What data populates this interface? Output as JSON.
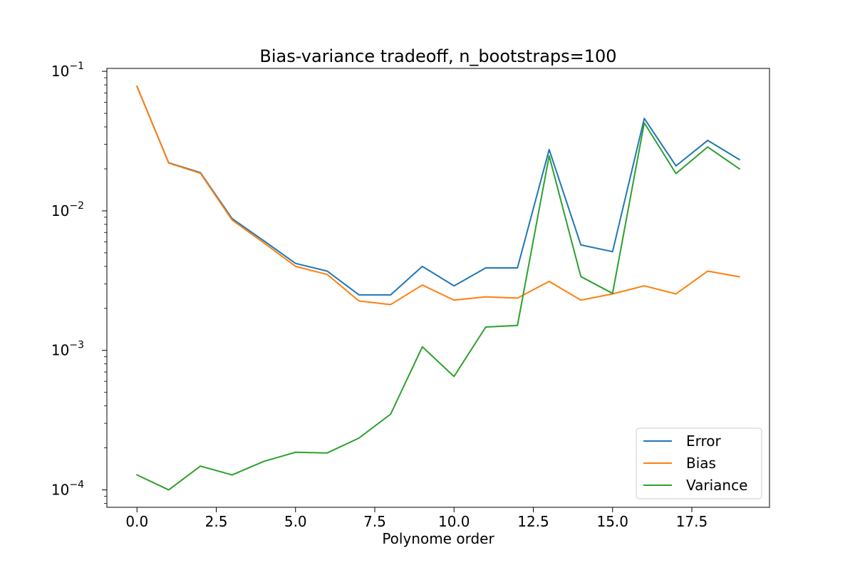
{
  "chart_data": {
    "type": "line",
    "title": "Bias-variance tradeoff, n_bootstraps=100",
    "xlabel": "Polynome order",
    "ylabel": "",
    "xscale": "linear",
    "yscale": "log",
    "xlim": [
      -0.95,
      19.95
    ],
    "ylim": [
      7.5e-05,
      0.105
    ],
    "x_ticks": [
      0.0,
      2.5,
      5.0,
      7.5,
      10.0,
      12.5,
      15.0,
      17.5
    ],
    "x_tick_labels": [
      "0.0",
      "2.5",
      "5.0",
      "7.5",
      "10.0",
      "12.5",
      "15.0",
      "17.5"
    ],
    "y_ticks": [
      0.0001,
      0.001,
      0.01,
      0.1
    ],
    "y_tick_labels": [
      {
        "base": "10",
        "exp": "−4"
      },
      {
        "base": "10",
        "exp": "−3"
      },
      {
        "base": "10",
        "exp": "−2"
      },
      {
        "base": "10",
        "exp": "−1"
      }
    ],
    "grid": false,
    "legend_position": "lower-right",
    "x": [
      0,
      1,
      2,
      3,
      4,
      5,
      6,
      7,
      8,
      9,
      10,
      11,
      12,
      13,
      14,
      15,
      16,
      17,
      18,
      19
    ],
    "series": [
      {
        "name": "Error",
        "color": "#1f77b4",
        "values": [
          0.078,
          0.0221,
          0.0188,
          0.0088,
          0.0061,
          0.0042,
          0.0037,
          0.0025,
          0.0025,
          0.004,
          0.0029,
          0.0039,
          0.0039,
          0.0275,
          0.0057,
          0.0051,
          0.046,
          0.021,
          0.032,
          0.0233
        ]
      },
      {
        "name": "Bias",
        "color": "#ff7f0e",
        "values": [
          0.078,
          0.022,
          0.0186,
          0.0086,
          0.0059,
          0.004,
          0.0035,
          0.00226,
          0.00213,
          0.00294,
          0.00229,
          0.00242,
          0.00237,
          0.00312,
          0.00229,
          0.00254,
          0.0029,
          0.00254,
          0.0037,
          0.00337
        ]
      },
      {
        "name": "Variance",
        "color": "#2ca02c",
        "values": [
          0.000128,
          0.0001,
          0.000148,
          0.000128,
          0.00016,
          0.000186,
          0.000184,
          0.000235,
          0.000349,
          0.00106,
          0.00065,
          0.00147,
          0.00151,
          0.0248,
          0.00338,
          0.00256,
          0.0427,
          0.0185,
          0.0287,
          0.02
        ]
      }
    ]
  }
}
